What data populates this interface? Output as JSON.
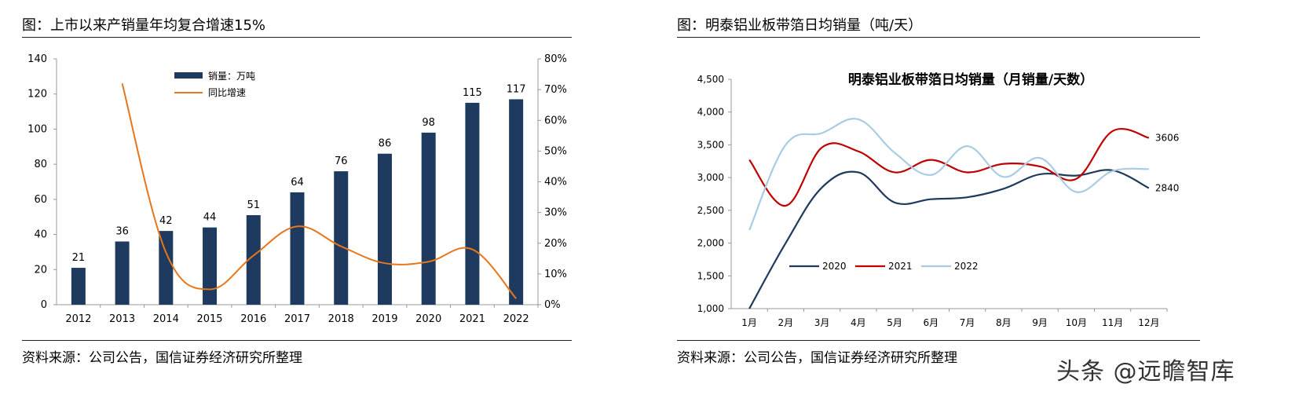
{
  "left_panel": {
    "title": "图：上市以来产销量年均复合增速15%",
    "source": "资料来源：公司公告，国信证券经济研究所整理"
  },
  "right_panel": {
    "title": "图：明泰铝业板带箔日均销量（吨/天）",
    "source": "资料来源：公司公告，国信证券经济研究所整理"
  },
  "watermark": "头条 @远瞻智库",
  "colors": {
    "bar": "#1f3a5f",
    "growth_line": "#e8761a",
    "s2020": "#1f3a5f",
    "s2021": "#c00000",
    "s2022": "#a9cce3"
  },
  "chart_data": [
    {
      "type": "bar",
      "title": "",
      "categories": [
        "2012",
        "2013",
        "2014",
        "2015",
        "2016",
        "2017",
        "2018",
        "2019",
        "2020",
        "2021",
        "2022"
      ],
      "series": [
        {
          "name": "销量：万吨",
          "type": "bar",
          "axis": "left",
          "values": [
            21,
            36,
            42,
            44,
            51,
            64,
            76,
            86,
            98,
            115,
            117
          ]
        },
        {
          "name": "同比增速",
          "type": "line",
          "axis": "right",
          "values": [
            null,
            0.72,
            0.17,
            0.05,
            0.16,
            0.255,
            0.19,
            0.135,
            0.14,
            0.18,
            0.02
          ]
        }
      ],
      "y_left": {
        "min": 0,
        "max": 140,
        "ticks": [
          0,
          20,
          40,
          60,
          80,
          100,
          120,
          140
        ]
      },
      "y_right": {
        "min": 0,
        "max": 0.8,
        "ticks": [
          "0%",
          "10%",
          "20%",
          "30%",
          "40%",
          "50%",
          "60%",
          "70%",
          "80%"
        ]
      },
      "data_labels": [
        "21",
        "36",
        "42",
        "44",
        "51",
        "64",
        "76",
        "86",
        "98",
        "115",
        "117"
      ],
      "legend": "top-left"
    },
    {
      "type": "line",
      "title": "明泰铝业板带箔日均销量（月销量/天数）",
      "categories": [
        "1月",
        "2月",
        "3月",
        "4月",
        "5月",
        "6月",
        "7月",
        "8月",
        "9月",
        "10月",
        "11月",
        "12月"
      ],
      "series": [
        {
          "name": "2020",
          "values": [
            1000,
            2000,
            2850,
            3080,
            2620,
            2670,
            2700,
            2830,
            3050,
            3030,
            3110,
            2840
          ]
        },
        {
          "name": "2021",
          "values": [
            3270,
            2570,
            3460,
            3400,
            3080,
            3270,
            3080,
            3210,
            3170,
            2980,
            3710,
            3606
          ]
        },
        {
          "name": "2022",
          "values": [
            2200,
            3500,
            3680,
            3890,
            3380,
            3040,
            3480,
            3010,
            3300,
            2780,
            3100,
            3130
          ]
        }
      ],
      "ylim": [
        1000,
        4500
      ],
      "y_ticks": [
        "1,000",
        "1,500",
        "2,000",
        "2,500",
        "3,000",
        "3,500",
        "4,000",
        "4,500"
      ],
      "end_labels": [
        "2840",
        "3606"
      ],
      "legend": "bottom-left"
    }
  ]
}
